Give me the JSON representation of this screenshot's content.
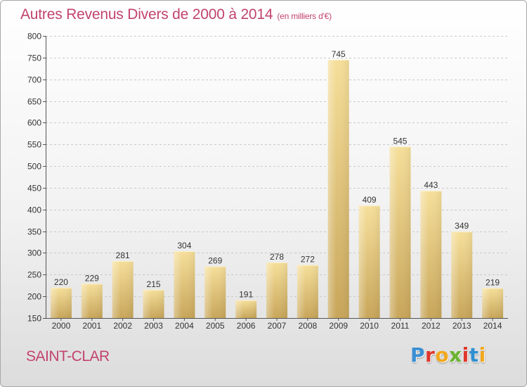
{
  "title": "Autres Revenus Divers de 2000 à 2014",
  "subtitle": "(en milliers d'€)",
  "city": "SAINT-CLAR",
  "logo": {
    "letters": [
      "P",
      "r",
      "o",
      "x",
      "i",
      "t",
      "i"
    ],
    "colors": [
      "#3a8fd4",
      "#e0362c",
      "#f2a81d",
      "#6ab42d",
      "#e0362c",
      "#2f8fcf",
      "#f2a81d"
    ]
  },
  "colors": {
    "title": "#c2436e",
    "bar_light": "#f6df9a",
    "bar_dark": "#c8a65a"
  },
  "chart_data": {
    "type": "bar",
    "title": "Autres Revenus Divers de 2000 à 2014",
    "subtitle": "(en milliers d'€)",
    "categories": [
      "2000",
      "2001",
      "2002",
      "2003",
      "2004",
      "2005",
      "2006",
      "2007",
      "2008",
      "2009",
      "2010",
      "2011",
      "2012",
      "2013",
      "2014"
    ],
    "values": [
      220,
      229,
      281,
      215,
      304,
      269,
      191,
      278,
      272,
      745,
      409,
      545,
      443,
      349,
      219
    ],
    "ylim": [
      150,
      800
    ],
    "yticks": [
      150,
      200,
      250,
      300,
      350,
      400,
      450,
      500,
      550,
      600,
      650,
      700,
      750,
      800
    ],
    "grid": true,
    "xlabel": "",
    "ylabel": ""
  }
}
